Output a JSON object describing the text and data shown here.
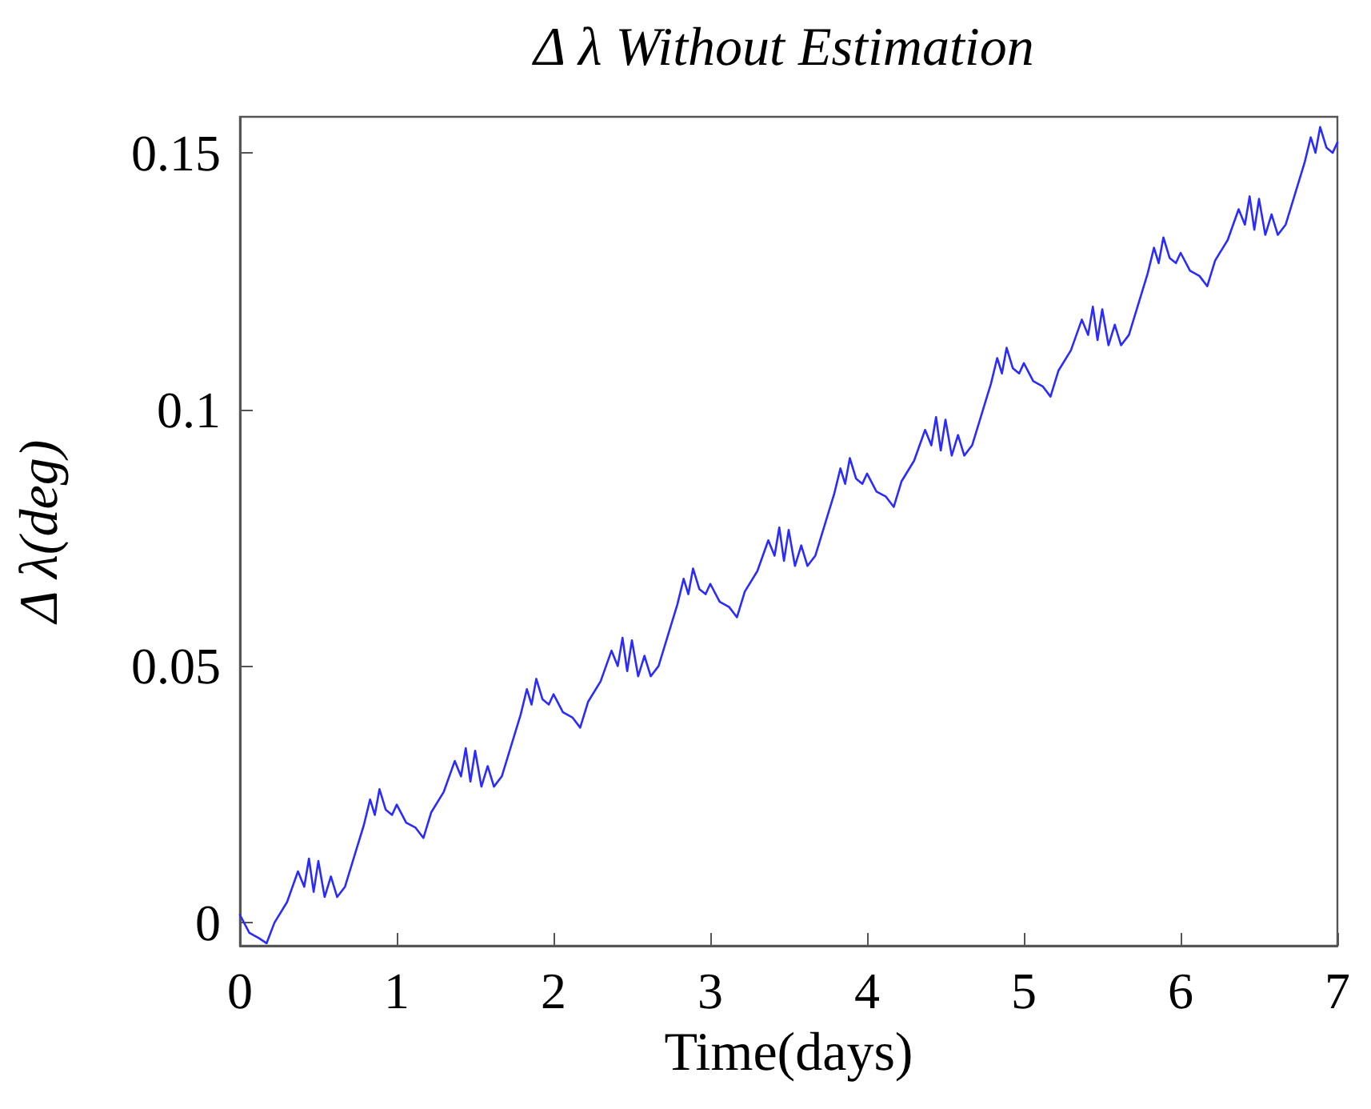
{
  "chart_data": {
    "type": "line",
    "title": "Δ λ Without Estimation",
    "xlabel": "Time(days)",
    "ylabel": "Δ λ(deg)",
    "xlim": [
      0,
      7
    ],
    "xticks": [
      0,
      1,
      2,
      3,
      4,
      5,
      6,
      7
    ],
    "ylim": [
      -0.0045,
      0.157
    ],
    "yticks": [
      0,
      0.05,
      0.1,
      0.15
    ],
    "grid": false,
    "marker": "none",
    "line_style": "solid",
    "series": [
      {
        "color": "#2b2bff",
        "x": [
          0,
          0.06,
          0.12,
          0.17,
          0.22,
          0.3,
          0.37,
          0.41,
          0.44,
          0.47,
          0.5,
          0.54,
          0.58,
          0.62,
          0.67,
          0.73,
          0.79,
          0.83,
          0.86,
          0.89,
          0.93,
          0.97,
          1,
          1.06,
          1.12,
          1.17,
          1.22,
          1.3,
          1.37,
          1.41,
          1.44,
          1.47,
          1.5,
          1.54,
          1.58,
          1.62,
          1.67,
          1.73,
          1.79,
          1.83,
          1.86,
          1.89,
          1.93,
          1.97,
          2,
          2.06,
          2.12,
          2.17,
          2.22,
          2.3,
          2.37,
          2.41,
          2.44,
          2.47,
          2.5,
          2.54,
          2.58,
          2.62,
          2.67,
          2.73,
          2.79,
          2.83,
          2.86,
          2.89,
          2.93,
          2.97,
          3,
          3.06,
          3.12,
          3.17,
          3.22,
          3.3,
          3.37,
          3.41,
          3.44,
          3.47,
          3.5,
          3.54,
          3.58,
          3.62,
          3.67,
          3.73,
          3.79,
          3.83,
          3.86,
          3.89,
          3.93,
          3.97,
          4,
          4.06,
          4.12,
          4.17,
          4.22,
          4.3,
          4.37,
          4.41,
          4.44,
          4.47,
          4.5,
          4.54,
          4.58,
          4.62,
          4.67,
          4.73,
          4.79,
          4.83,
          4.86,
          4.89,
          4.93,
          4.97,
          5,
          5.06,
          5.12,
          5.17,
          5.22,
          5.3,
          5.37,
          5.41,
          5.44,
          5.47,
          5.5,
          5.54,
          5.58,
          5.62,
          5.67,
          5.73,
          5.79,
          5.83,
          5.86,
          5.89,
          5.93,
          5.97,
          6,
          6.06,
          6.12,
          6.17,
          6.22,
          6.3,
          6.37,
          6.41,
          6.44,
          6.47,
          6.5,
          6.54,
          6.58,
          6.62,
          6.67,
          6.73,
          6.79,
          6.83,
          6.86,
          6.89,
          6.93,
          6.97,
          7
        ],
        "values": [
          0.0015,
          -0.002,
          -0.003,
          -0.004,
          0,
          0.004,
          0.01,
          0.007,
          0.0125,
          0.006,
          0.012,
          0.005,
          0.009,
          0.005,
          0.007,
          0.013,
          0.019,
          0.024,
          0.021,
          0.026,
          0.022,
          0.021,
          0.023,
          0.0195,
          0.0185,
          0.0165,
          0.0215,
          0.0255,
          0.0315,
          0.0285,
          0.034,
          0.0275,
          0.0335,
          0.0265,
          0.0305,
          0.0265,
          0.0285,
          0.0345,
          0.0405,
          0.0455,
          0.0425,
          0.0475,
          0.0435,
          0.0425,
          0.0445,
          0.041,
          0.04,
          0.038,
          0.043,
          0.047,
          0.053,
          0.05,
          0.0555,
          0.049,
          0.055,
          0.048,
          0.052,
          0.048,
          0.05,
          0.056,
          0.062,
          0.067,
          0.064,
          0.069,
          0.065,
          0.064,
          0.066,
          0.0625,
          0.0615,
          0.0595,
          0.0645,
          0.0685,
          0.0745,
          0.0715,
          0.077,
          0.0705,
          0.0765,
          0.0695,
          0.0735,
          0.0695,
          0.0715,
          0.0775,
          0.0835,
          0.0885,
          0.0855,
          0.0905,
          0.0865,
          0.0855,
          0.0875,
          0.084,
          0.083,
          0.081,
          0.086,
          0.09,
          0.096,
          0.093,
          0.0985,
          0.092,
          0.098,
          0.091,
          0.095,
          0.091,
          0.093,
          0.099,
          0.105,
          0.11,
          0.107,
          0.112,
          0.108,
          0.107,
          0.109,
          0.1055,
          0.1045,
          0.1025,
          0.1075,
          0.1115,
          0.1175,
          0.1145,
          0.12,
          0.1135,
          0.1195,
          0.1125,
          0.1165,
          0.1125,
          0.1145,
          0.1205,
          0.1265,
          0.1315,
          0.1285,
          0.1335,
          0.1295,
          0.1285,
          0.1305,
          0.127,
          0.126,
          0.124,
          0.129,
          0.133,
          0.139,
          0.136,
          0.1415,
          0.135,
          0.141,
          0.134,
          0.138,
          0.134,
          0.136,
          0.142,
          0.148,
          0.153,
          0.15,
          0.155,
          0.151,
          0.15,
          0.152
        ]
      }
    ]
  }
}
